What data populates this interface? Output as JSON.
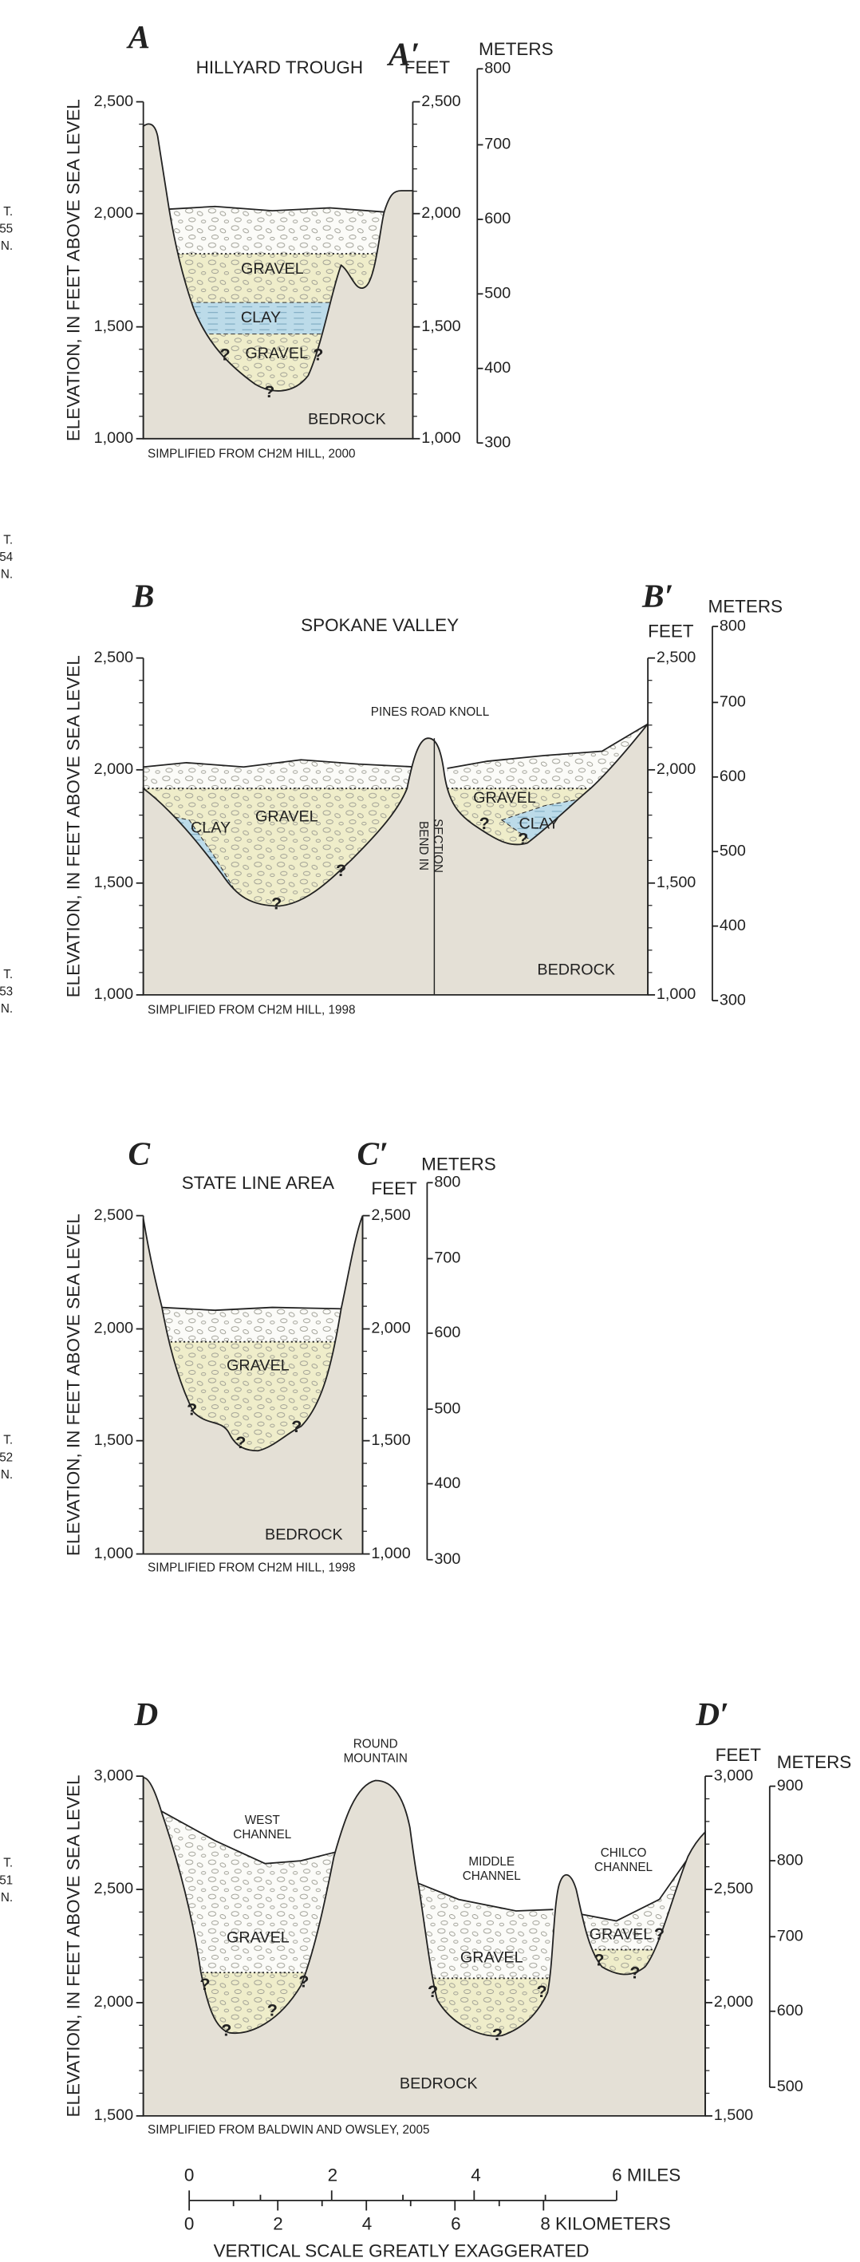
{
  "township_labels": [
    [
      "T.",
      "55",
      "N."
    ],
    [
      "T.",
      "54",
      "N."
    ],
    [
      "T.",
      "53",
      "N."
    ],
    [
      "T.",
      "52",
      "N."
    ],
    [
      "T.",
      "51",
      "N."
    ]
  ],
  "panels": [
    {
      "label": "A",
      "label_prime": "A′",
      "title": "HILLYARD TROUGH",
      "y_axis_title": "ELEVATION, IN FEET ABOVE SEA LEVEL",
      "feet": "FEET",
      "meters": "METERS",
      "feet_ticks": [
        "2,500",
        "2,000",
        "1,500",
        "1,000"
      ],
      "meter_ticks": [
        "800",
        "700",
        "600",
        "500",
        "400",
        "300"
      ],
      "units": [
        "GRAVEL",
        "CLAY",
        "GRAVEL",
        "BEDROCK"
      ],
      "queries": [
        "?",
        "?",
        "?"
      ],
      "source": "SIMPLIFIED FROM CH2M HILL, 2000"
    },
    {
      "label": "B",
      "label_prime": "B′",
      "title": "SPOKANE VALLEY",
      "y_axis_title": "ELEVATION, IN FEET ABOVE SEA LEVEL",
      "feet": "FEET",
      "meters": "METERS",
      "feet_ticks": [
        "2,500",
        "2,000",
        "1,500",
        "1,000"
      ],
      "meter_ticks": [
        "800",
        "700",
        "600",
        "500",
        "400",
        "300"
      ],
      "features": [
        [
          "PINES ROAD KNOLL"
        ],
        [
          "BEND IN",
          "SECTION"
        ]
      ],
      "units": [
        "CLAY",
        "GRAVEL",
        "GRAVEL",
        "CLAY",
        "BEDROCK"
      ],
      "queries": [
        "?",
        "?",
        "?",
        "?"
      ],
      "source": "SIMPLIFIED FROM CH2M HILL, 1998"
    },
    {
      "label": "C",
      "label_prime": "C′",
      "title": "STATE LINE AREA",
      "y_axis_title": "ELEVATION, IN FEET ABOVE SEA LEVEL",
      "feet": "FEET",
      "meters": "METERS",
      "feet_ticks": [
        "2,500",
        "2,000",
        "1,500",
        "1,000"
      ],
      "meter_ticks": [
        "800",
        "700",
        "600",
        "500",
        "400",
        "300"
      ],
      "units": [
        "GRAVEL",
        "BEDROCK"
      ],
      "queries": [
        "?",
        "?",
        "?"
      ],
      "source": "SIMPLIFIED FROM CH2M HILL, 1998"
    },
    {
      "label": "D",
      "label_prime": "D′",
      "y_axis_title": "ELEVATION, IN FEET ABOVE SEA LEVEL",
      "feet": "FEET",
      "meters": "METERS",
      "feet_ticks": [
        "3,000",
        "2,500",
        "2,000",
        "1,500"
      ],
      "meter_ticks": [
        "900",
        "800",
        "700",
        "600",
        "500"
      ],
      "features": [
        [
          "ROUND",
          "MOUNTAIN"
        ],
        [
          "WEST",
          "CHANNEL"
        ],
        [
          "MIDDLE",
          "CHANNEL"
        ],
        [
          "CHILCO",
          "CHANNEL"
        ]
      ],
      "units": [
        "GRAVEL",
        "GRAVEL",
        "GRAVEL",
        "BEDROCK"
      ],
      "queries": [
        "?",
        "?",
        "?",
        "?",
        "?",
        "?",
        "?",
        "?",
        "?",
        "?"
      ],
      "source": "SIMPLIFIED FROM BALDWIN AND OWSLEY, 2005"
    }
  ],
  "scale_bar": {
    "miles": [
      "0",
      "2",
      "4",
      "6 MILES"
    ],
    "kilometers": [
      "0",
      "2",
      "4",
      "6",
      "8 KILOMETERS"
    ],
    "note": "VERTICAL SCALE GREATLY EXAGGERATED"
  }
}
